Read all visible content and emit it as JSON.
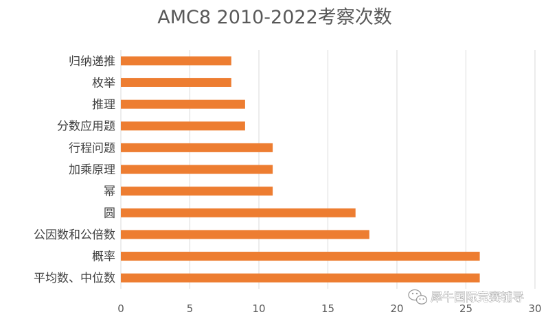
{
  "chart_data": {
    "type": "bar",
    "orientation": "horizontal",
    "title": "AMC8 2010-2022考察次数",
    "categories": [
      "平均数、中位数",
      "概率",
      "公因数和公倍数",
      "圆",
      "幂",
      "加乘原理",
      "行程问题",
      "分数应用题",
      "推理",
      "枚举",
      "归纳递推"
    ],
    "values": [
      26,
      26,
      18,
      17,
      11,
      11,
      11,
      9,
      9,
      8,
      8
    ],
    "xlim": [
      0,
      30
    ],
    "xticks": [
      "0",
      "5",
      "10",
      "15",
      "20",
      "25",
      "30"
    ],
    "grid": true,
    "legend": "none",
    "bar_color": "#ED7D31",
    "grid_color": "#D9D9D9"
  },
  "watermark": {
    "text": "犀牛国际竞赛辅导",
    "icon": "wechat-icon"
  }
}
